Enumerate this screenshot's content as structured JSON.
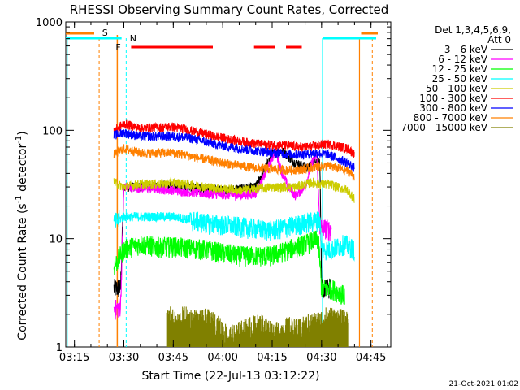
{
  "chart_data": {
    "type": "line",
    "title": "RHESSI Observing Summary Count Rates, Corrected",
    "xlabel": "Start Time (22-Jul-13 03:12:22)",
    "ylabel_main": "Corrected Count Rate (s",
    "ylabel_sup1": "-1",
    "ylabel_mid": " detector",
    "ylabel_sup2": "-1",
    "ylabel_end": ")",
    "y_scale": "log",
    "ylim": [
      1,
      1000
    ],
    "xlim_minutes": [
      192.37,
      291
    ],
    "x_ticks": [
      {
        "label": "03:15",
        "minutes": 195
      },
      {
        "label": "03:30",
        "minutes": 210
      },
      {
        "label": "03:45",
        "minutes": 225
      },
      {
        "label": "04:00",
        "minutes": 240
      },
      {
        "label": "04:15",
        "minutes": 255
      },
      {
        "label": "04:30",
        "minutes": 270
      },
      {
        "label": "04:45",
        "minutes": 285
      }
    ],
    "y_ticks": [
      {
        "label": "1",
        "value": 1
      },
      {
        "label": "10",
        "value": 10
      },
      {
        "label": "100",
        "value": 100
      },
      {
        "label": "1000",
        "value": 1000
      }
    ],
    "legend": {
      "header1": "Det 1,3,4,5,6,9,",
      "header2": "Att 0",
      "position": "right"
    },
    "series": [
      {
        "name": "3 - 6 keV",
        "color": "#000000",
        "values": [
          [
            207,
            3.5
          ],
          [
            209,
            3.5
          ],
          [
            210,
            30
          ],
          [
            225,
            31
          ],
          [
            240,
            28
          ],
          [
            250,
            30
          ],
          [
            255,
            60
          ],
          [
            258,
            65
          ],
          [
            262,
            50
          ],
          [
            266,
            45
          ],
          [
            268,
            55
          ],
          [
            269.5,
            50
          ],
          [
            270,
            3.5
          ],
          [
            273,
            3.5
          ]
        ]
      },
      {
        "name": "6 - 12 keV",
        "color": "#ff00ff",
        "values": [
          [
            207,
            2.2
          ],
          [
            208,
            2.3
          ],
          [
            209,
            2.4
          ],
          [
            210,
            30
          ],
          [
            225,
            28
          ],
          [
            235,
            26
          ],
          [
            245,
            25
          ],
          [
            250,
            26
          ],
          [
            253,
            40
          ],
          [
            256,
            65
          ],
          [
            258,
            40
          ],
          [
            260,
            30
          ],
          [
            262,
            25
          ],
          [
            265,
            30
          ],
          [
            267,
            50
          ],
          [
            268.5,
            60
          ],
          [
            269.5,
            13
          ],
          [
            273,
            12
          ]
        ]
      },
      {
        "name": "12 - 25 keV",
        "color": "#00ff00",
        "values": [
          [
            207,
            5.5
          ],
          [
            210,
            8
          ],
          [
            215,
            9
          ],
          [
            220,
            8.5
          ],
          [
            225,
            8.5
          ],
          [
            235,
            8
          ],
          [
            245,
            7
          ],
          [
            255,
            7
          ],
          [
            260,
            8
          ],
          [
            265,
            9
          ],
          [
            269,
            10
          ],
          [
            270,
            3.5
          ],
          [
            273,
            3.5
          ],
          [
            277,
            3
          ]
        ]
      },
      {
        "name": "25 - 50 keV",
        "color": "#00ffff",
        "values": [
          [
            207,
            14
          ],
          [
            210,
            16
          ],
          [
            215,
            16
          ],
          [
            220,
            16
          ],
          [
            225,
            16
          ],
          [
            235,
            14
          ],
          [
            245,
            13
          ],
          [
            255,
            12
          ],
          [
            260,
            13
          ],
          [
            265,
            14
          ],
          [
            269.5,
            15
          ],
          [
            270,
            8
          ],
          [
            273,
            8
          ],
          [
            277,
            9
          ],
          [
            280,
            8
          ]
        ]
      },
      {
        "name": "50 - 100 keV",
        "color": "#cccc00",
        "values": [
          [
            207,
            33
          ],
          [
            210,
            30
          ],
          [
            215,
            32
          ],
          [
            220,
            32
          ],
          [
            225,
            33
          ],
          [
            235,
            30
          ],
          [
            245,
            28
          ],
          [
            255,
            30
          ],
          [
            262,
            30
          ],
          [
            267,
            33
          ],
          [
            269.5,
            32
          ],
          [
            272,
            32
          ],
          [
            278,
            28
          ],
          [
            280,
            23
          ]
        ]
      },
      {
        "name": "100 - 300 keV",
        "color": "#ff0000",
        "values": [
          [
            207,
            100
          ],
          [
            210,
            115
          ],
          [
            215,
            105
          ],
          [
            225,
            108
          ],
          [
            230,
            100
          ],
          [
            240,
            85
          ],
          [
            250,
            75
          ],
          [
            260,
            72
          ],
          [
            265,
            70
          ],
          [
            268,
            72
          ],
          [
            272,
            75
          ],
          [
            278,
            68
          ],
          [
            280,
            60
          ]
        ]
      },
      {
        "name": "300 - 800 keV",
        "color": "#0000ff",
        "values": [
          [
            207,
            90
          ],
          [
            210,
            95
          ],
          [
            215,
            88
          ],
          [
            225,
            88
          ],
          [
            230,
            85
          ],
          [
            240,
            72
          ],
          [
            250,
            65
          ],
          [
            260,
            60
          ],
          [
            265,
            60
          ],
          [
            268,
            62
          ],
          [
            272,
            60
          ],
          [
            278,
            50
          ],
          [
            280,
            45
          ]
        ]
      },
      {
        "name": "800 - 7000 keV",
        "color": "#ff8000",
        "values": [
          [
            207,
            60
          ],
          [
            210,
            68
          ],
          [
            215,
            62
          ],
          [
            225,
            62
          ],
          [
            230,
            58
          ],
          [
            240,
            50
          ],
          [
            250,
            45
          ],
          [
            260,
            43
          ],
          [
            265,
            44
          ],
          [
            268,
            46
          ],
          [
            272,
            47
          ],
          [
            278,
            42
          ],
          [
            280,
            38
          ]
        ]
      },
      {
        "name": "7000 - 15000 keV",
        "color": "#808000",
        "values": [
          [
            223,
            1.8
          ],
          [
            224,
            2.0
          ],
          [
            226,
            1.7
          ],
          [
            228,
            2.0
          ],
          [
            231,
            1.9
          ],
          [
            233,
            1.8
          ],
          [
            235,
            1.9
          ],
          [
            238,
            1.7
          ],
          [
            242,
            1.3
          ],
          [
            248,
            1.6
          ],
          [
            252,
            1.7
          ],
          [
            256,
            1.4
          ],
          [
            260,
            1.6
          ],
          [
            263,
            1.5
          ],
          [
            266,
            1.7
          ],
          [
            269,
            1.8
          ],
          [
            272,
            2.0
          ],
          [
            275,
            1.9
          ],
          [
            278,
            1.8
          ]
        ]
      }
    ],
    "flags": [
      {
        "label": "S",
        "color": "#ff8000"
      },
      {
        "label": "N",
        "color": "#00ffff"
      },
      {
        "label": "F",
        "color": "#ff0000"
      }
    ]
  },
  "footer": {
    "timestamp": "21-Oct-2021 01:02"
  }
}
